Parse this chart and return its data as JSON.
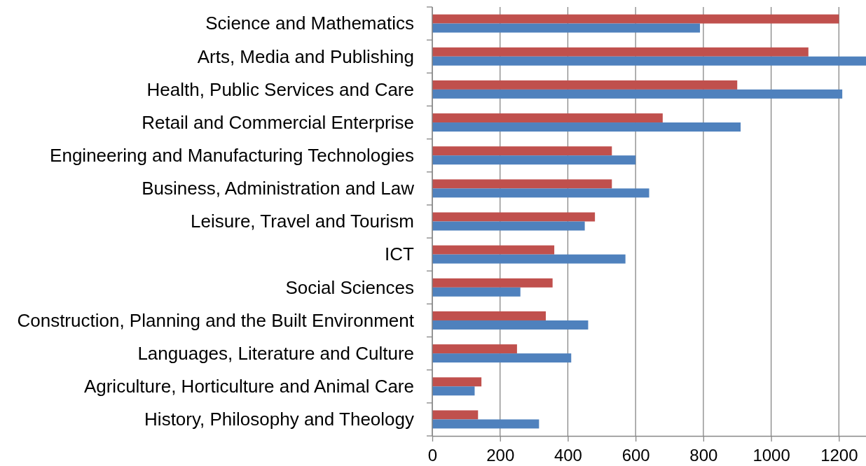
{
  "chart_data": {
    "type": "bar",
    "orientation": "horizontal",
    "categories": [
      "Science and Mathematics",
      "Arts, Media and Publishing",
      "Health, Public Services and Care",
      "Retail and Commercial Enterprise",
      "Engineering and Manufacturing Technologies",
      "Business, Administration and Law",
      "Leisure, Travel and Tourism",
      "ICT",
      "Social Sciences",
      "Construction, Planning and the Built Environment",
      "Languages, Literature and Culture",
      "Agriculture, Horticulture and Animal Care",
      "History, Philosophy and Theology"
    ],
    "series": [
      {
        "color": "#c0504d",
        "values": [
          1200,
          1110,
          900,
          680,
          530,
          530,
          480,
          360,
          355,
          335,
          250,
          145,
          135
        ]
      },
      {
        "color": "#4f81bd",
        "values": [
          790,
          1280,
          1210,
          910,
          600,
          640,
          450,
          570,
          260,
          460,
          410,
          125,
          315
        ]
      }
    ],
    "xlim": [
      0,
      1280
    ],
    "xticks": [
      0,
      200,
      400,
      600,
      800,
      1000,
      1200
    ],
    "grid": "x"
  }
}
